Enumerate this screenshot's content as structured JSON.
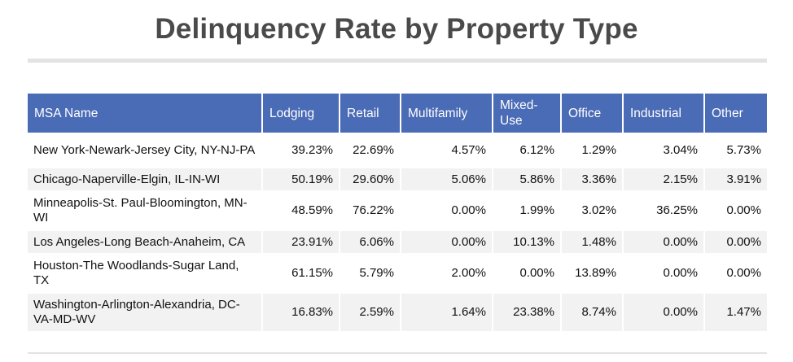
{
  "chart_data": {
    "type": "table",
    "title": "Delinquency Rate by Property Type",
    "columns": [
      "MSA Name",
      "Lodging",
      "Retail",
      "Multifamily",
      "Mixed-Use",
      "Office",
      "Industrial",
      "Other"
    ],
    "rows": [
      [
        "New York-Newark-Jersey City, NY-NJ-PA",
        "39.23%",
        "22.69%",
        "4.57%",
        "6.12%",
        "1.29%",
        "3.04%",
        "5.73%"
      ],
      [
        "Chicago-Naperville-Elgin, IL-IN-WI",
        "50.19%",
        "29.60%",
        "5.06%",
        "5.86%",
        "3.36%",
        "2.15%",
        "3.91%"
      ],
      [
        "Minneapolis-St. Paul-Bloomington, MN-WI",
        "48.59%",
        "76.22%",
        "0.00%",
        "1.99%",
        "3.02%",
        "36.25%",
        "0.00%"
      ],
      [
        "Los Angeles-Long Beach-Anaheim, CA",
        "23.91%",
        "6.06%",
        "0.00%",
        "10.13%",
        "1.48%",
        "0.00%",
        "0.00%"
      ],
      [
        "Houston-The Woodlands-Sugar Land, TX",
        "61.15%",
        "5.79%",
        "2.00%",
        "0.00%",
        "13.89%",
        "0.00%",
        "0.00%"
      ],
      [
        "Washington-Arlington-Alexandria, DC-VA-MD-WV",
        "16.83%",
        "2.59%",
        "1.64%",
        "23.38%",
        "8.74%",
        "0.00%",
        "1.47%"
      ]
    ]
  },
  "colors": {
    "header_bg": "#4a6bb6",
    "header_text": "#ffffff",
    "stripe": "#f2f2f2",
    "title_text": "#4a4a4a"
  }
}
